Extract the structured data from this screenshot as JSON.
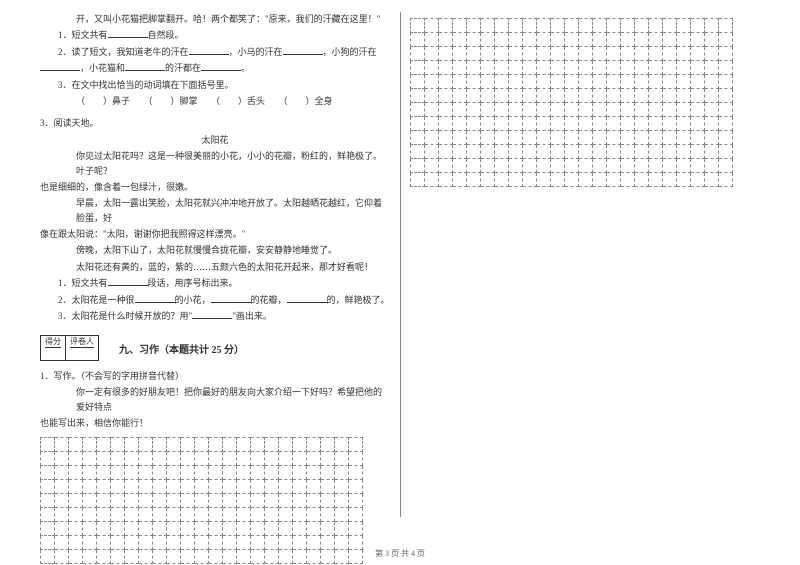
{
  "leftCol": {
    "topLines": [
      {
        "cls": "indent2",
        "text": "开，又叫小花猫把脚掌翻开。哈！两个都笑了：\"原来，我们的汗藏在这里！\""
      },
      {
        "cls": "indent1",
        "text": "1．短文共有________自然段。"
      },
      {
        "cls": "indent1",
        "text": "2．读了短文，我知道老牛的汗在__________，小马的汗在__________，小狗的汗在"
      },
      {
        "cls": "",
        "text": "__________，小花猫和__________的汗都在__________。"
      },
      {
        "cls": "indent1",
        "text": "3．在文中找出恰当的动词填在下面括号里。"
      },
      {
        "cls": "indent2",
        "text": "（　　）鼻子　　（　　）脚掌　　（　　）舌头　　（　　）全身"
      }
    ],
    "reading2Header": "3．阅读天地。",
    "reading2Title": "太阳花",
    "reading2Body": [
      {
        "cls": "indent2",
        "text": "你见过太阳花吗？这是一种很美丽的小花，小小的花瓣，粉红的，鲜艳极了。叶子呢？"
      },
      {
        "cls": "",
        "text": "也是细细的，像含着一包绿汁，很嫩。"
      },
      {
        "cls": "indent2",
        "text": "早晨，太阳一露出笑脸，太阳花就兴冲冲地开放了。太阳越晒花越红，它仰着脸蛋，好"
      },
      {
        "cls": "",
        "text": "像在跟太阳说：\"太阳，谢谢你把我照得这样漂亮。\""
      },
      {
        "cls": "indent2",
        "text": "傍晚，太阳下山了，太阳花就慢慢合拢花瓣，安安静静地睡觉了。"
      },
      {
        "cls": "indent2",
        "text": "太阳花还有黄的，蓝的，紫的……五颜六色的太阳花开起来，那才好看呢！"
      },
      {
        "cls": "indent1",
        "text": "1．短文共有______段话，用序号标出来。"
      },
      {
        "cls": "indent1",
        "text": "2．太阳花是一种很______的小花，______的花瓣，______的，鲜艳极了。"
      },
      {
        "cls": "indent1",
        "text": "3．太阳花是什么时候开放的？用\"______\"画出来。"
      }
    ],
    "section9": {
      "score1": "得分",
      "score2": "评卷人",
      "title": "九、习作（本题共计 25 分）"
    },
    "writing": [
      {
        "cls": "",
        "text": "1．写作。（不会写的字用拼音代替）"
      },
      {
        "cls": "indent2",
        "text": "你一定有很多的好朋友吧！把你最好的朋友向大家介绍一下好吗？希望把他的爱好特点"
      },
      {
        "cls": "",
        "text": "也能写出来，相信你能行！"
      }
    ],
    "gridLeft": {
      "rows": 9,
      "cols": 23
    }
  },
  "rightCol": {
    "gridRight": {
      "rows": 12,
      "cols": 23
    }
  },
  "footer": "第 3 页 共 4 页"
}
